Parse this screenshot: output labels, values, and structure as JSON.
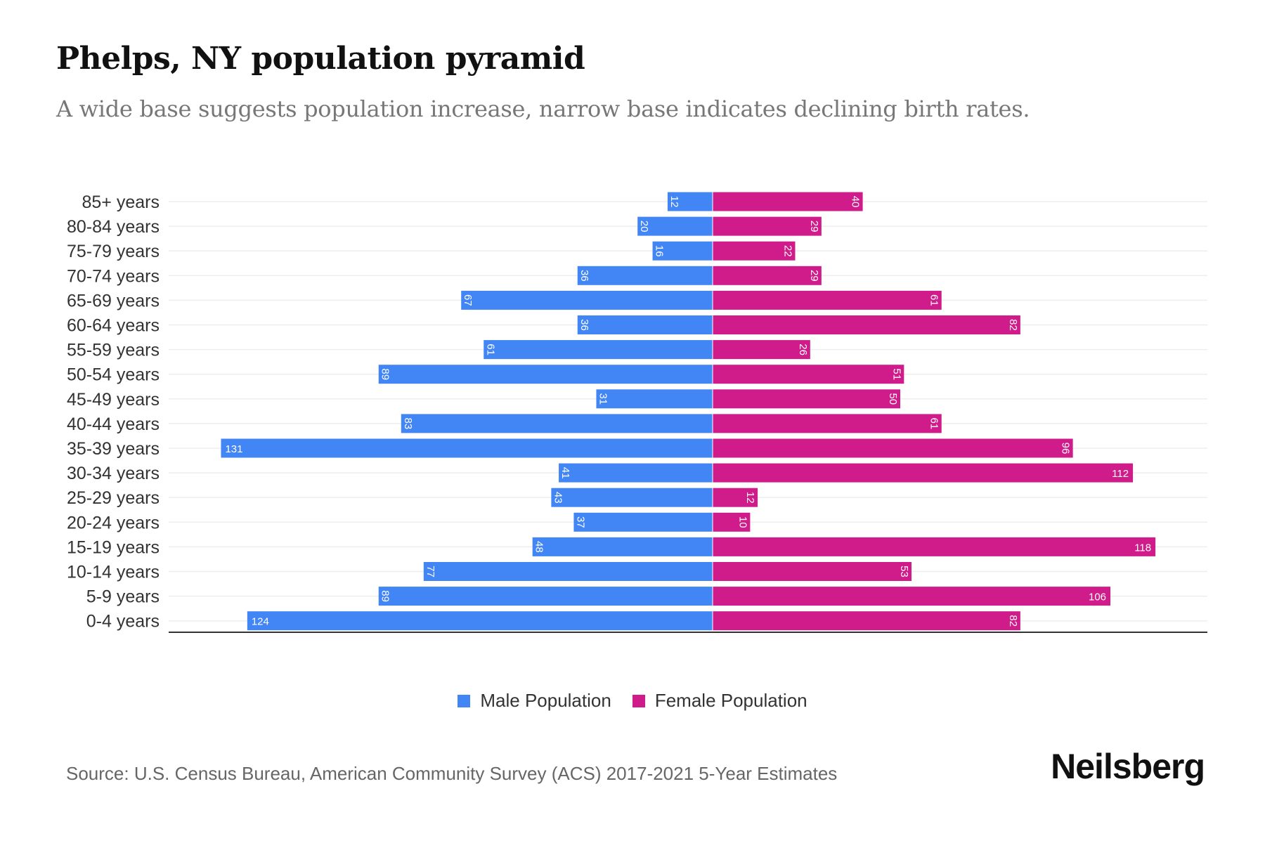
{
  "chart_data": {
    "type": "bar",
    "orientation": "horizontal-pyramid",
    "title": "Phelps, NY population pyramid",
    "subtitle": "A wide base suggests population increase, narrow base indicates declining birth rates.",
    "categories": [
      "85+ years",
      "80-84 years",
      "75-79 years",
      "70-74 years",
      "65-69 years",
      "60-64 years",
      "55-59 years",
      "50-54 years",
      "45-49 years",
      "40-44 years",
      "35-39 years",
      "30-34 years",
      "25-29 years",
      "20-24 years",
      "15-19 years",
      "10-14 years",
      "5-9 years",
      "0-4 years"
    ],
    "series": [
      {
        "name": "Male Population",
        "color": "#4285f4",
        "values": [
          12,
          20,
          16,
          36,
          67,
          36,
          61,
          89,
          31,
          83,
          131,
          41,
          43,
          37,
          48,
          77,
          89,
          124
        ]
      },
      {
        "name": "Female Population",
        "color": "#d01c8b",
        "values": [
          40,
          29,
          22,
          29,
          61,
          82,
          26,
          51,
          50,
          61,
          96,
          112,
          12,
          10,
          118,
          53,
          106,
          82
        ]
      }
    ],
    "xlim": [
      -145,
      132
    ],
    "grid": true,
    "legend_position": "bottom-center"
  },
  "source": "Source: U.S. Census Bureau, American Community Survey (ACS) 2017-2021 5-Year Estimates",
  "logo": "Neilsberg"
}
